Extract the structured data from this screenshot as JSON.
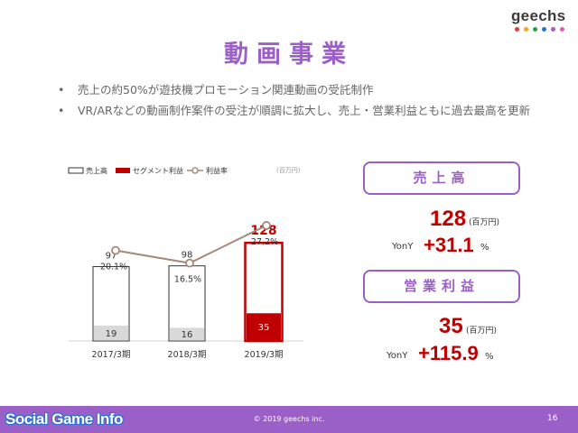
{
  "logo": {
    "text": "geechs",
    "dot_colors": [
      "#e03c3c",
      "#f5a623",
      "#2c9e4b",
      "#2a6fd0",
      "#9b5fc8",
      "#e05fa8"
    ]
  },
  "slide": {
    "title": "動画事業",
    "bullets": [
      "売上の約50%が遊技機プロモーション関連動画の受託制作",
      "VR/ARなどの動画制作案件の受注が順調に拡大し、売上・営業利益ともに過去最高を更新"
    ]
  },
  "chart_data": {
    "type": "bar",
    "unit_label": "(百万円)",
    "categories": [
      "2017/3期",
      "2018/3期",
      "2019/3期"
    ],
    "series": [
      {
        "name": "売上高",
        "kind": "bar-outline",
        "values": [
          97,
          98,
          128
        ]
      },
      {
        "name": "セグメント利益",
        "kind": "bar-fill",
        "values": [
          19,
          16,
          35
        ]
      },
      {
        "name": "利益率",
        "kind": "line",
        "values": [
          20.1,
          16.5,
          27.2
        ],
        "labels": [
          "20.1%",
          "16.5%",
          "27.2%"
        ]
      }
    ],
    "highlight_index": 2,
    "colors": {
      "outline": "#333333",
      "highlight": "#c00000",
      "segment": "#d9d9d9",
      "line": "#a6897a"
    }
  },
  "kpi": {
    "sales": {
      "heading": "売上高",
      "value": "128",
      "unit": "(百万円)",
      "yony_label": "YonY",
      "yony_value": "+31.1",
      "pct": "%"
    },
    "profit": {
      "heading": "営業利益",
      "value": "35",
      "unit": "(百万円)",
      "yony_label": "YonY",
      "yony_value": "+115.9",
      "pct": "%"
    }
  },
  "footer": {
    "brand": "Social Game Info",
    "copyright": "© 2019 geechs inc.",
    "page": "16"
  },
  "colors": {
    "accent": "#9b5fc8",
    "value_red": "#c00000"
  }
}
